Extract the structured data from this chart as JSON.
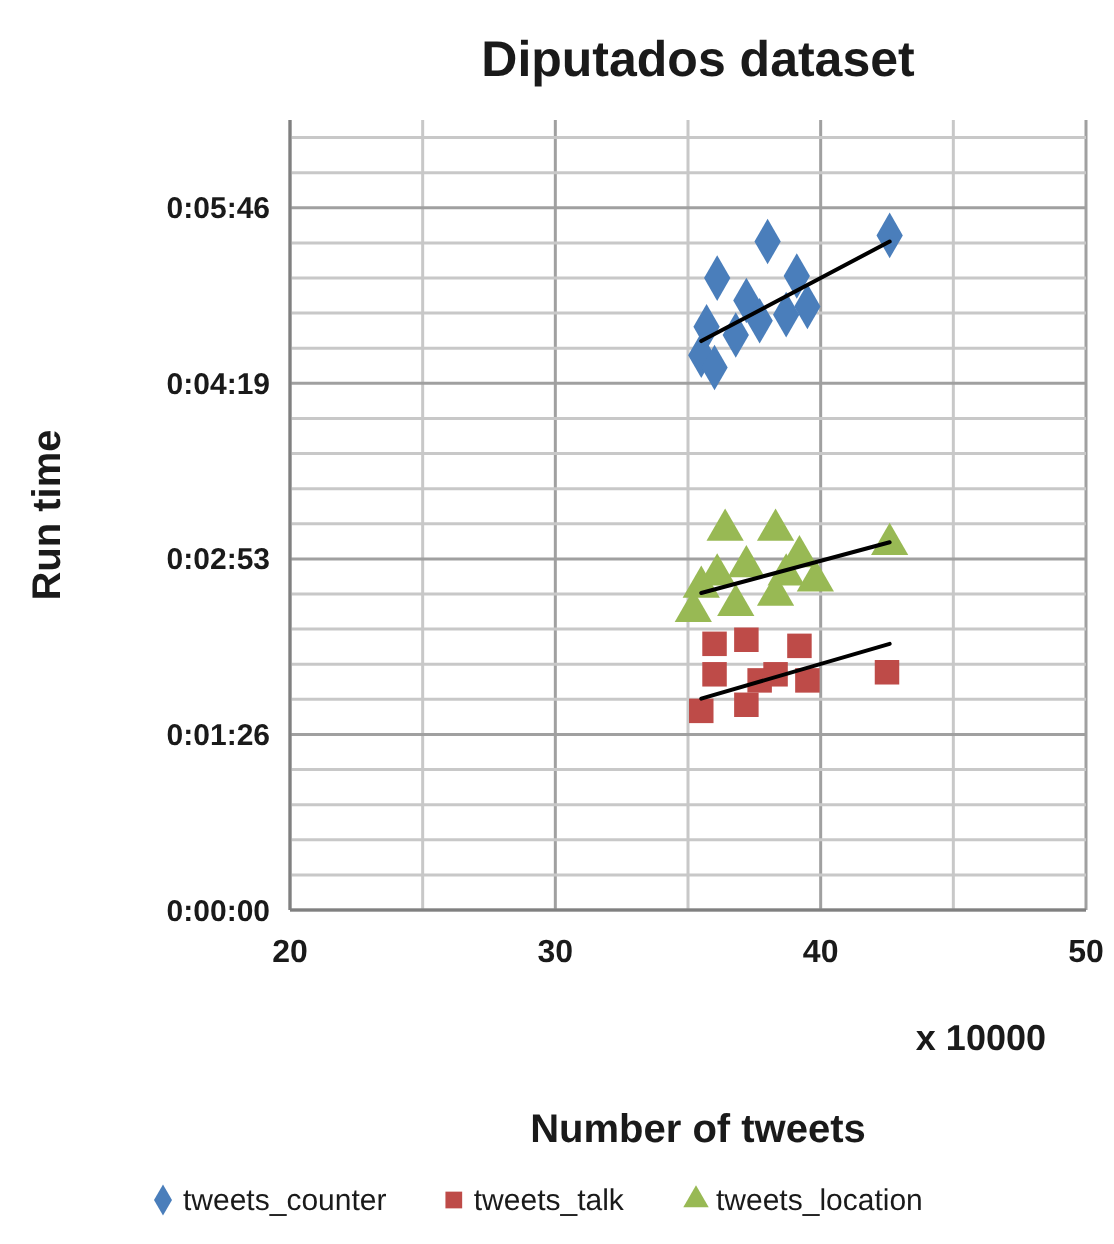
{
  "chart_data": {
    "type": "scatter",
    "title": "Diputados dataset",
    "xlabel": "Number of tweets",
    "ylabel": "Run time",
    "annotations": [
      "x 10000"
    ],
    "xlim": [
      20,
      50
    ],
    "xticks": [
      20,
      30,
      40,
      50
    ],
    "ylim": [
      0,
      388.8
    ],
    "yticks": [
      {
        "value": 0,
        "label": "0:00:00"
      },
      {
        "value": 86.4,
        "label": "0:01:26"
      },
      {
        "value": 172.8,
        "label": "0:02:53"
      },
      {
        "value": 259.2,
        "label": "0:04:19"
      },
      {
        "value": 345.6,
        "label": "0:05:46"
      }
    ],
    "grid": true,
    "legend": "bottom",
    "series": [
      {
        "name": "tweets_counter",
        "color": "#4a7ebb",
        "marker": "diamond",
        "x": [
          42.6,
          38.0,
          36.1,
          39.1,
          39.5,
          37.2,
          38.7,
          35.7,
          36.8,
          35.5,
          36.0,
          37.7
        ],
        "values": [
          332,
          329,
          311,
          312,
          297,
          300,
          293,
          287,
          283,
          273,
          267,
          290
        ]
      },
      {
        "name": "tweets_talk",
        "color": "#be4b48",
        "marker": "square",
        "x": [
          42.5,
          36.0,
          37.2,
          39.2,
          39.5,
          35.5,
          37.2,
          36.0,
          38.3,
          37.7
        ],
        "values": [
          117,
          131,
          133,
          130,
          113,
          98,
          101,
          116,
          116,
          113
        ]
      },
      {
        "name": "tweets_location",
        "color": "#98b954",
        "marker": "triangle",
        "x": [
          36.4,
          38.3,
          42.6,
          36.1,
          37.2,
          39.2,
          39.8,
          35.5,
          35.2,
          36.8,
          38.3,
          38.7
        ],
        "values": [
          187,
          187,
          180,
          165,
          169,
          174,
          162,
          159,
          147,
          150,
          155,
          165
        ]
      },
      {
        "type": "line",
        "color": "#000000",
        "marker": "none",
        "x": [
          35.5,
          42.6
        ],
        "values": [
          280,
          329
        ]
      },
      {
        "type": "line",
        "color": "#000000",
        "marker": "none",
        "x": [
          35.5,
          42.6
        ],
        "values": [
          104,
          131
        ]
      },
      {
        "type": "line",
        "color": "#000000",
        "marker": "none",
        "x": [
          35.5,
          42.6
        ],
        "values": [
          156,
          181
        ]
      }
    ]
  }
}
